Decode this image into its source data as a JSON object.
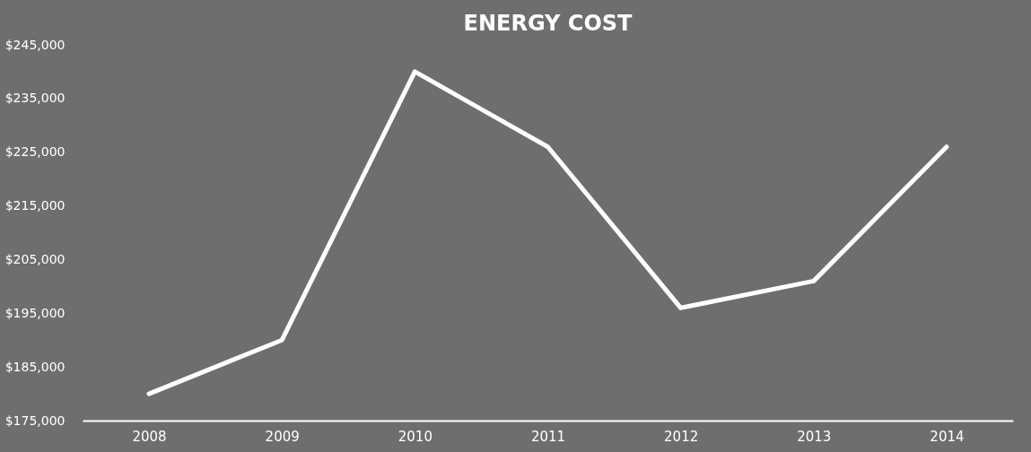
{
  "chart_data": {
    "type": "line",
    "title": "ENERGY COST",
    "categories": [
      "2008",
      "2009",
      "2010",
      "2011",
      "2012",
      "2013",
      "2014"
    ],
    "series": [
      {
        "color": "#ffffff",
        "values": [
          180000,
          190000,
          240000,
          226000,
          196000,
          201000,
          226000
        ]
      }
    ],
    "ylim": [
      175000,
      245000
    ],
    "yticks": [
      {
        "value": 175000,
        "label": "$175,000"
      },
      {
        "value": 185000,
        "label": "$185,000"
      },
      {
        "value": 195000,
        "label": "$195,000"
      },
      {
        "value": 205000,
        "label": "$205,000"
      },
      {
        "value": 215000,
        "label": "$215,000"
      },
      {
        "value": 225000,
        "label": "$225,000"
      },
      {
        "value": 235000,
        "label": "$235,000"
      },
      {
        "value": 245000,
        "label": "$245,000"
      }
    ],
    "grid": false,
    "legend": false,
    "marker": "none",
    "line_style": "solid"
  }
}
